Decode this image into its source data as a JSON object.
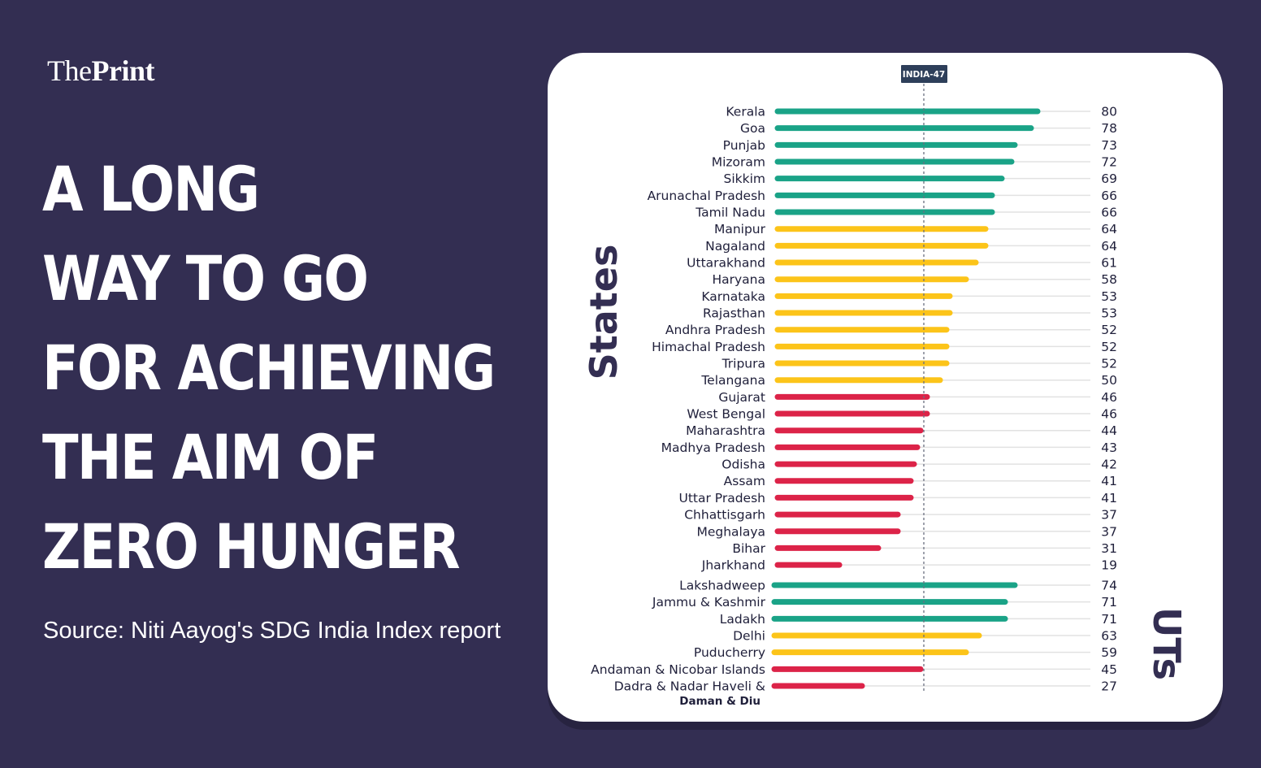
{
  "brand": {
    "logo_light": "The",
    "logo_bold": "Print"
  },
  "headline": [
    "A LONG",
    "WAY TO GO",
    "FOR ACHIEVING",
    "THE AIM OF",
    "ZERO HUNGER"
  ],
  "source": "Source: Niti Aayog's SDG India Index report",
  "colors": {
    "background": "#332e52",
    "achiever": "#1aa387",
    "performer": "#fcc419",
    "aspirant": "#dc2348",
    "group_label": "#332e52",
    "gridline": "#e2e2e2"
  },
  "chart_data": {
    "type": "bar",
    "orientation": "horizontal",
    "reference_line": {
      "label": "INDIA-47",
      "value": 47
    },
    "xlim": [
      0,
      80
    ],
    "groups": [
      {
        "name": "States",
        "items": [
          {
            "label": "Kerala",
            "value": 80,
            "category": "achiever"
          },
          {
            "label": "Goa",
            "value": 78,
            "category": "achiever"
          },
          {
            "label": "Punjab",
            "value": 73,
            "category": "achiever"
          },
          {
            "label": "Mizoram",
            "value": 72,
            "category": "achiever"
          },
          {
            "label": "Sikkim",
            "value": 69,
            "category": "achiever"
          },
          {
            "label": "Arunachal Pradesh",
            "value": 66,
            "category": "achiever"
          },
          {
            "label": "Tamil Nadu",
            "value": 66,
            "category": "achiever"
          },
          {
            "label": "Manipur",
            "value": 64,
            "category": "performer"
          },
          {
            "label": "Nagaland",
            "value": 64,
            "category": "performer"
          },
          {
            "label": "Uttarakhand",
            "value": 61,
            "category": "performer"
          },
          {
            "label": "Haryana",
            "value": 58,
            "category": "performer"
          },
          {
            "label": "Karnataka",
            "value": 53,
            "category": "performer"
          },
          {
            "label": "Rajasthan",
            "value": 53,
            "category": "performer"
          },
          {
            "label": "Andhra Pradesh",
            "value": 52,
            "category": "performer"
          },
          {
            "label": "Himachal Pradesh",
            "value": 52,
            "category": "performer"
          },
          {
            "label": "Tripura",
            "value": 52,
            "category": "performer"
          },
          {
            "label": "Telangana",
            "value": 50,
            "category": "performer"
          },
          {
            "label": "Gujarat",
            "value": 46,
            "category": "aspirant"
          },
          {
            "label": "West Bengal",
            "value": 46,
            "category": "aspirant"
          },
          {
            "label": "Maharashtra",
            "value": 44,
            "category": "aspirant"
          },
          {
            "label": "Madhya Pradesh",
            "value": 43,
            "category": "aspirant"
          },
          {
            "label": "Odisha",
            "value": 42,
            "category": "aspirant"
          },
          {
            "label": "Assam",
            "value": 41,
            "category": "aspirant"
          },
          {
            "label": "Uttar Pradesh",
            "value": 41,
            "category": "aspirant"
          },
          {
            "label": "Chhattisgarh",
            "value": 37,
            "category": "aspirant"
          },
          {
            "label": "Meghalaya",
            "value": 37,
            "category": "aspirant"
          },
          {
            "label": "Bihar",
            "value": 31,
            "category": "aspirant"
          },
          {
            "label": "Jharkhand",
            "value": 19,
            "category": "aspirant"
          }
        ]
      },
      {
        "name": "UTs",
        "items": [
          {
            "label": "Lakshadweep",
            "value": 74,
            "category": "achiever"
          },
          {
            "label": "Jammu & Kashmir",
            "value": 71,
            "category": "achiever"
          },
          {
            "label": "Ladakh",
            "value": 71,
            "category": "achiever"
          },
          {
            "label": "Delhi",
            "value": 63,
            "category": "performer"
          },
          {
            "label": "Puducherry",
            "value": 59,
            "category": "performer"
          },
          {
            "label": "Andaman & Nicobar Islands",
            "value": 45,
            "category": "aspirant"
          },
          {
            "label": "Dadra & Nadar Haveli &",
            "label_line2": "Daman & Diu",
            "value": 27,
            "category": "aspirant"
          }
        ]
      }
    ]
  }
}
